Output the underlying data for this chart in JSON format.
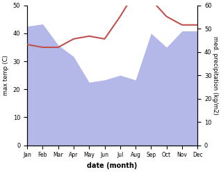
{
  "months": [
    "Jan",
    "Feb",
    "Mar",
    "Apr",
    "May",
    "Jun",
    "Jul",
    "Aug",
    "Sep",
    "Oct",
    "Nov",
    "Dec"
  ],
  "precipitation": [
    51,
    52,
    43,
    38,
    27,
    28,
    30,
    28,
    48,
    42,
    49,
    49
  ],
  "temperature": [
    36,
    35,
    35,
    38,
    39,
    38,
    46,
    55,
    52,
    46,
    43,
    43
  ],
  "temp_color": "#c0504d",
  "precip_fill_color": "#b3b8e8",
  "xlabel": "date (month)",
  "ylabel_left": "max temp (C)",
  "ylabel_right": "med. precipitation (kg/m2)",
  "ylim_left": [
    0,
    50
  ],
  "ylim_right": [
    0,
    60
  ],
  "yticks_left": [
    0,
    10,
    20,
    30,
    40,
    50
  ],
  "yticks_right": [
    0,
    10,
    20,
    30,
    40,
    50,
    60
  ],
  "background_color": "#ffffff",
  "fig_bg_color": "#ffffff"
}
